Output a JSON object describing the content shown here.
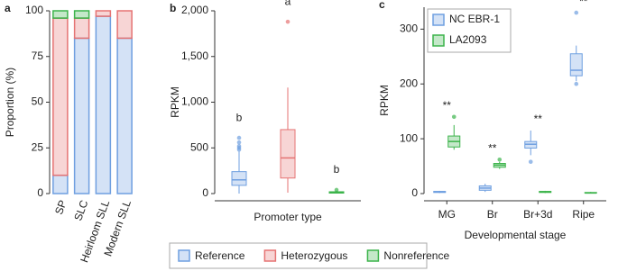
{
  "chart_data": [
    {
      "type": "stacked_bar",
      "panel": "a",
      "categories": [
        "SP",
        "SLC",
        "Heirloom SLL",
        "Modern SLL"
      ],
      "ylabel": "Proportion (%)",
      "ylim": [
        0,
        100
      ],
      "yticks": [
        0,
        25,
        50,
        75,
        100
      ],
      "legend": "bottom",
      "series": [
        {
          "name": "Reference",
          "color": "#6f9fe0",
          "values": [
            10,
            85,
            97,
            85
          ]
        },
        {
          "name": "Heterozygous",
          "color": "#e57373",
          "values": [
            86,
            11,
            3,
            15
          ]
        },
        {
          "name": "Nonreference",
          "color": "#3cb44b",
          "values": [
            4,
            4,
            0,
            0
          ]
        }
      ]
    },
    {
      "type": "box",
      "panel": "b",
      "categories": [
        null,
        null,
        null
      ],
      "xlabel": "Promoter type",
      "ylabel": "RPKM",
      "ylim": [
        0,
        2000
      ],
      "yticks": [
        0,
        500,
        {
          "value": 1000,
          "label": "1,000"
        },
        {
          "value": 1500,
          "label": "1,500"
        },
        {
          "value": 2000,
          "label": "2,000"
        }
      ],
      "colors": [
        "#6f9fe0",
        "#e57373",
        "#3cb44b"
      ],
      "boxes": [
        {
          "min": 0,
          "q1": 90,
          "median": 150,
          "q3": 240,
          "max": 460,
          "outliers": [
            480,
            500,
            520,
            560,
            610
          ]
        },
        {
          "min": 10,
          "q1": 170,
          "median": 390,
          "q3": 700,
          "max": 1160,
          "outliers": [
            1880
          ]
        },
        {
          "min": 0,
          "q1": 5,
          "median": 12,
          "q3": 20,
          "max": 30,
          "outliers": [
            40
          ]
        }
      ],
      "group_labels": [
        "b",
        "a",
        "b"
      ]
    },
    {
      "type": "grouped_box",
      "panel": "c",
      "categories": [
        "MG",
        "Br",
        "Br+3d",
        "Ripe"
      ],
      "xlabel": "Developmental stage",
      "ylabel": "RPKM",
      "ylim": [
        0,
        340
      ],
      "yticks": [
        0,
        100,
        200,
        300
      ],
      "legend": "upper left",
      "series": [
        {
          "name": "NC EBR-1",
          "color": "#6f9fe0",
          "boxes": [
            {
              "min": 1,
              "q1": 2,
              "median": 3,
              "q3": 4,
              "max": 5,
              "outliers": []
            },
            {
              "min": 3,
              "q1": 6,
              "median": 10,
              "q3": 14,
              "max": 18,
              "outliers": []
            },
            {
              "min": 70,
              "q1": 83,
              "median": 90,
              "q3": 95,
              "max": 115,
              "outliers": [
                58
              ]
            },
            {
              "min": 205,
              "q1": 215,
              "median": 225,
              "q3": 255,
              "max": 270,
              "outliers": [
                200,
                330
              ]
            }
          ]
        },
        {
          "name": "LA2093",
          "color": "#3cb44b",
          "boxes": [
            {
              "min": 80,
              "q1": 85,
              "median": 95,
              "q3": 105,
              "max": 125,
              "outliers": [
                140
              ]
            },
            {
              "min": 45,
              "q1": 48,
              "median": 52,
              "q3": 55,
              "max": 58,
              "outliers": [
                62
              ]
            },
            {
              "min": 1,
              "q1": 2,
              "median": 3,
              "q3": 4,
              "max": 5,
              "outliers": []
            },
            {
              "min": 0,
              "q1": 1,
              "median": 1,
              "q3": 2,
              "max": 3,
              "outliers": []
            }
          ]
        }
      ],
      "significance": [
        "**",
        "**",
        "**",
        "**"
      ]
    }
  ]
}
